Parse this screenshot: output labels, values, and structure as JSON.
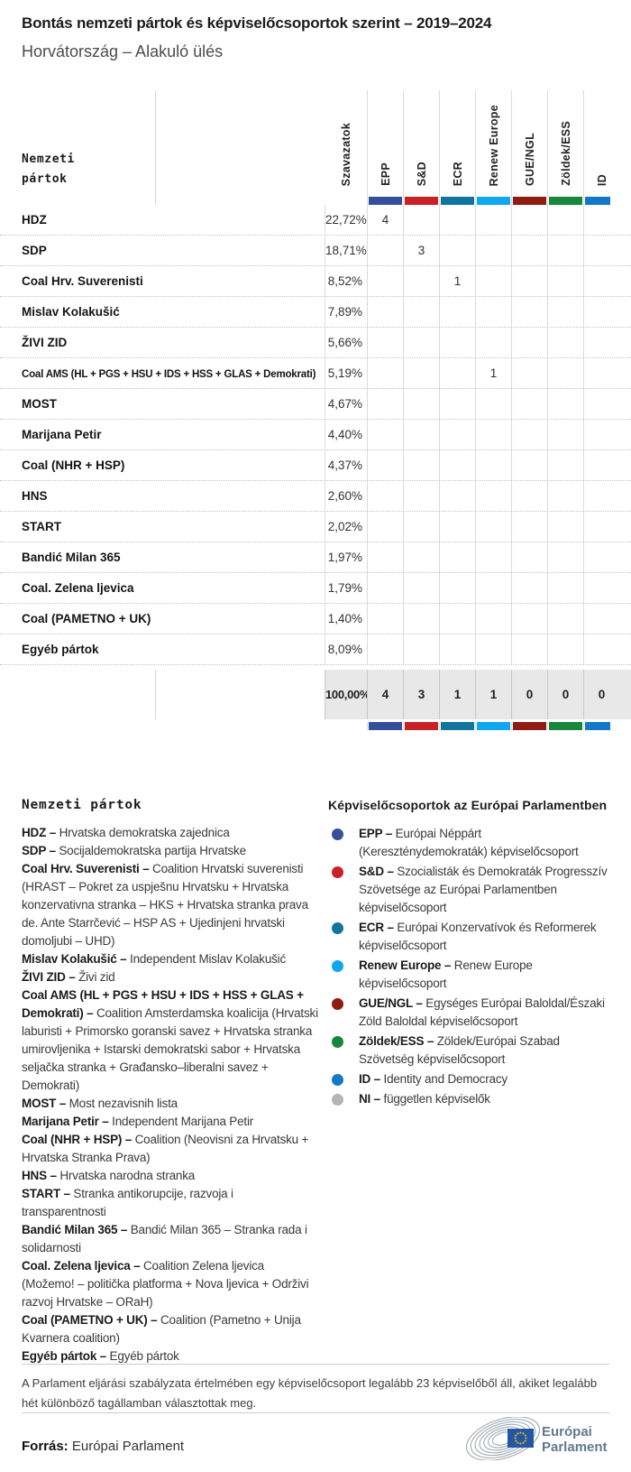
{
  "header": {
    "title": "Bontás nemzeti pártok és képviselőcsoportok szerint – 2019–2024",
    "subtitle": "Horvátország – Alakuló ülés"
  },
  "table": {
    "row_header": "Nemzeti pártok",
    "votes_header": "Szavazatok",
    "groups": [
      {
        "label": "EPP",
        "color": "#35509B"
      },
      {
        "label": "S&D",
        "color": "#CA2128"
      },
      {
        "label": "ECR",
        "color": "#12759E"
      },
      {
        "label": "Renew Europe",
        "color": "#0FA7F0"
      },
      {
        "label": "GUE/NGL",
        "color": "#8E1C13"
      },
      {
        "label": "Zöldek/ESS",
        "color": "#18863B"
      },
      {
        "label": "ID",
        "color": "#1478C8"
      }
    ],
    "rows": [
      {
        "party": "HDZ",
        "votes": "22,72%",
        "seats": [
          "4",
          "",
          "",
          "",
          "",
          "",
          ""
        ]
      },
      {
        "party": "SDP",
        "votes": "18,71%",
        "seats": [
          "",
          "3",
          "",
          "",
          "",
          "",
          ""
        ]
      },
      {
        "party": "Coal Hrv. Suverenisti",
        "votes": "8,52%",
        "seats": [
          "",
          "",
          "1",
          "",
          "",
          "",
          ""
        ]
      },
      {
        "party": "Mislav Kolakušić",
        "votes": "7,89%",
        "seats": [
          "",
          "",
          "",
          "",
          "",
          "",
          ""
        ]
      },
      {
        "party": "ŽIVI ZID",
        "votes": "5,66%",
        "seats": [
          "",
          "",
          "",
          "",
          "",
          "",
          ""
        ]
      },
      {
        "party": "Coal AMS (HL + PGS + HSU + IDS + HSS + GLAS + Demokrati)",
        "votes": "5,19%",
        "seats": [
          "",
          "",
          "",
          "1",
          "",
          "",
          ""
        ]
      },
      {
        "party": "MOST",
        "votes": "4,67%",
        "seats": [
          "",
          "",
          "",
          "",
          "",
          "",
          ""
        ]
      },
      {
        "party": "Marijana Petir",
        "votes": "4,40%",
        "seats": [
          "",
          "",
          "",
          "",
          "",
          "",
          ""
        ]
      },
      {
        "party": "Coal (NHR + HSP)",
        "votes": "4,37%",
        "seats": [
          "",
          "",
          "",
          "",
          "",
          "",
          ""
        ]
      },
      {
        "party": "HNS",
        "votes": "2,60%",
        "seats": [
          "",
          "",
          "",
          "",
          "",
          "",
          ""
        ]
      },
      {
        "party": "START",
        "votes": "2,02%",
        "seats": [
          "",
          "",
          "",
          "",
          "",
          "",
          ""
        ]
      },
      {
        "party": "Bandić Milan 365",
        "votes": "1,97%",
        "seats": [
          "",
          "",
          "",
          "",
          "",
          "",
          ""
        ]
      },
      {
        "party": "Coal. Zelena ljevica",
        "votes": "1,79%",
        "seats": [
          "",
          "",
          "",
          "",
          "",
          "",
          ""
        ]
      },
      {
        "party": "Coal (PAMETNO + UK)",
        "votes": "1,40%",
        "seats": [
          "",
          "",
          "",
          "",
          "",
          "",
          ""
        ]
      },
      {
        "party": "Egyéb pártok",
        "votes": "8,09%",
        "seats": [
          "",
          "",
          "",
          "",
          "",
          "",
          ""
        ]
      }
    ],
    "total": {
      "votes": "100,00%",
      "seats": [
        "4",
        "3",
        "1",
        "1",
        "0",
        "0",
        "0"
      ]
    }
  },
  "party_legend": {
    "heading": "Nemzeti pártok",
    "items": [
      {
        "name": "HDZ",
        "desc": "Hrvatska demokratska zajednica"
      },
      {
        "name": "SDP",
        "desc": "Socijaldemokratska partija Hrvatske"
      },
      {
        "name": "Coal Hrv. Suverenisti",
        "desc": "Coalition Hrvatski suverenisti (HRAST – Pokret za uspješnu Hrvatsku + Hrvatska konzervativna stranka – HKS + Hrvatska stranka prava de. Ante Starrčević – HSP AS + Ujedinjeni hrvatski domoljubi – UHD)"
      },
      {
        "name": "Mislav Kolakušić",
        "desc": "Independent Mislav Kolakušić"
      },
      {
        "name": "ŽIVI ZID",
        "desc": "Živi zid"
      },
      {
        "name": "Coal AMS (HL + PGS + HSU + IDS + HSS + GLAS + Demokrati)",
        "desc": "Coalition Amsterdamska koalicija (Hrvatski laburisti + Primorsko goranski savez + Hrvatska stranka umirovljenika + Istarski demokratski sabor + Hrvatska seljačka stranka + Građansko–liberalni savez + Demokrati)"
      },
      {
        "name": "MOST",
        "desc": "Most nezavisnih lista"
      },
      {
        "name": "Marijana Petir",
        "desc": "Independent Marijana Petir"
      },
      {
        "name": "Coal (NHR + HSP)",
        "desc": "Coalition (Neovisni za Hrvatsku + Hrvatska Stranka Prava)"
      },
      {
        "name": "HNS",
        "desc": "Hrvatska narodna stranka"
      },
      {
        "name": "START",
        "desc": "Stranka antikorupcije, razvoja i transparentnosti"
      },
      {
        "name": "Bandić Milan 365",
        "desc": "Bandić Milan 365 – Stranka rada i solidarnosti"
      },
      {
        "name": "Coal. Zelena ljevica",
        "desc": "Coalition Zelena ljevica (Možemo! – politička platforma + Nova ljevica + Održivi razvoj Hrvatske – ORaH)"
      },
      {
        "name": "Coal (PAMETNO + UK)",
        "desc": "Coalition (Pametno + Unija Kvarnera coalition)"
      },
      {
        "name": "Egyéb pártok",
        "desc": "Egyéb pártok"
      }
    ]
  },
  "group_legend": {
    "heading": "Képviselőcsoportok az Európai Parlamentben",
    "items": [
      {
        "name": "EPP",
        "desc": "Európai Néppárt (Kereszténydemokraták) képviselőcsoport",
        "color": "#35509B"
      },
      {
        "name": "S&D",
        "desc": "Szocialisták és Demokraták Progresszív Szövetsége az Európai Parlamentben képviselőcsoport",
        "color": "#CA2128"
      },
      {
        "name": "ECR",
        "desc": "Európai Konzervatívok és Reformerek képviselőcsoport",
        "color": "#12759E"
      },
      {
        "name": "Renew Europe",
        "desc": "Renew Europe képviselőcsoport",
        "color": "#0FA7F0"
      },
      {
        "name": "GUE/NGL",
        "desc": "Egységes Európai Baloldal/Északi Zöld Baloldal képviselőcsoport",
        "color": "#8E1C13"
      },
      {
        "name": "Zöldek/ESS",
        "desc": "Zöldek/Európai Szabad Szövetség képviselőcsoport",
        "color": "#18863B"
      },
      {
        "name": "ID",
        "desc": "Identity and Democracy",
        "color": "#1478C8"
      },
      {
        "name": "NI",
        "desc": "független képviselők",
        "color": "#B5B5B5"
      }
    ]
  },
  "footnote": "A Parlament eljárási szabályzata értelmében egy képviselőcsoport legalább 23 képviselőből áll, akiket legalább hét különböző tagállamban választottak meg.",
  "source": {
    "label": "Forrás:",
    "value": "Európai Parlament"
  },
  "logo": {
    "line1": "Európai",
    "line2": "Parlament"
  },
  "chart_data": {
    "type": "table",
    "title": "Bontás nemzeti pártok és képviselőcsoportok szerint – 2019–2024",
    "subtitle": "Horvátország – Alakuló ülés",
    "columns": [
      "Nemzeti pártok",
      "Szavazatok",
      "EPP",
      "S&D",
      "ECR",
      "Renew Europe",
      "GUE/NGL",
      "Zöldek/ESS",
      "ID"
    ],
    "rows": [
      [
        "HDZ",
        "22,72%",
        4,
        null,
        null,
        null,
        null,
        null,
        null
      ],
      [
        "SDP",
        "18,71%",
        null,
        3,
        null,
        null,
        null,
        null,
        null
      ],
      [
        "Coal Hrv. Suverenisti",
        "8,52%",
        null,
        null,
        1,
        null,
        null,
        null,
        null
      ],
      [
        "Mislav Kolakušić",
        "7,89%",
        null,
        null,
        null,
        null,
        null,
        null,
        null
      ],
      [
        "ŽIVI ZID",
        "5,66%",
        null,
        null,
        null,
        null,
        null,
        null,
        null
      ],
      [
        "Coal AMS (HL + PGS + HSU + IDS + HSS + GLAS + Demokrati)",
        "5,19%",
        null,
        null,
        null,
        1,
        null,
        null,
        null
      ],
      [
        "MOST",
        "4,67%",
        null,
        null,
        null,
        null,
        null,
        null,
        null
      ],
      [
        "Marijana Petir",
        "4,40%",
        null,
        null,
        null,
        null,
        null,
        null,
        null
      ],
      [
        "Coal (NHR + HSP)",
        "4,37%",
        null,
        null,
        null,
        null,
        null,
        null,
        null
      ],
      [
        "HNS",
        "2,60%",
        null,
        null,
        null,
        null,
        null,
        null,
        null
      ],
      [
        "START",
        "2,02%",
        null,
        null,
        null,
        null,
        null,
        null,
        null
      ],
      [
        "Bandić Milan 365",
        "1,97%",
        null,
        null,
        null,
        null,
        null,
        null,
        null
      ],
      [
        "Coal. Zelena ljevica",
        "1,79%",
        null,
        null,
        null,
        null,
        null,
        null,
        null
      ],
      [
        "Coal (PAMETNO + UK)",
        "1,40%",
        null,
        null,
        null,
        null,
        null,
        null,
        null
      ],
      [
        "Egyéb pártok",
        "8,09%",
        null,
        null,
        null,
        null,
        null,
        null,
        null
      ]
    ],
    "total_row": [
      "",
      "100,00%",
      4,
      3,
      1,
      1,
      0,
      0,
      0
    ]
  }
}
